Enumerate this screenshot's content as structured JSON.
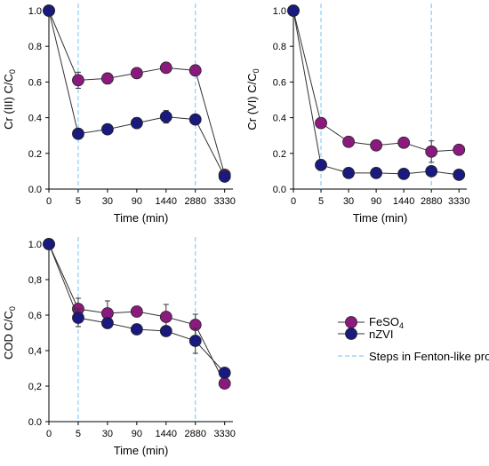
{
  "chart_data": [
    {
      "type": "line",
      "categories": [
        "0",
        "5",
        "30",
        "90",
        "1440",
        "2880",
        "3330"
      ],
      "ylabel": "Cr (III) C/C0",
      "xlabel": "Time (min)",
      "ylim": [
        0,
        1.0
      ],
      "yticks": [
        "0.0",
        "0.2",
        "0.4",
        "0.6",
        "0.8",
        "1.0"
      ],
      "step_markers": [
        "5",
        "2880"
      ],
      "series": [
        {
          "name": "FeSO4",
          "color": "#8b1a7e",
          "values": [
            1.0,
            0.61,
            0.62,
            0.65,
            0.68,
            0.665,
            0.08
          ],
          "errors": [
            0,
            0.045,
            0.03,
            0.015,
            0.02,
            0.015,
            0.015
          ]
        },
        {
          "name": "nZVI",
          "color": "#1a1a7e",
          "values": [
            1.0,
            0.31,
            0.335,
            0.37,
            0.405,
            0.39,
            0.07
          ],
          "errors": [
            0,
            0.015,
            0.015,
            0.03,
            0.035,
            0.015,
            0.015
          ]
        }
      ]
    },
    {
      "type": "line",
      "categories": [
        "0",
        "5",
        "30",
        "90",
        "1440",
        "2880",
        "3330"
      ],
      "ylabel": "Cr (VI) C/C0",
      "xlabel": "Time (min)",
      "ylim": [
        0,
        1.0
      ],
      "yticks": [
        "0.0",
        "0.2",
        "0.4",
        "0.6",
        "0.8",
        "1.0"
      ],
      "step_markers": [
        "5",
        "2880"
      ],
      "series": [
        {
          "name": "FeSO4",
          "color": "#8b1a7e",
          "values": [
            1.0,
            0.37,
            0.265,
            0.245,
            0.26,
            0.21,
            0.22
          ],
          "errors": [
            0,
            0.01,
            0.01,
            0.025,
            0.01,
            0.06,
            0.01
          ]
        },
        {
          "name": "nZVI",
          "color": "#1a1a7e",
          "values": [
            1.0,
            0.135,
            0.09,
            0.09,
            0.085,
            0.1,
            0.08
          ],
          "errors": [
            0,
            0.03,
            0.01,
            0.025,
            0.01,
            0.025,
            0.01
          ]
        }
      ]
    },
    {
      "type": "line",
      "categories": [
        "0",
        "5",
        "30",
        "90",
        "1440",
        "2880",
        "3330"
      ],
      "ylabel": "COD C/C0",
      "xlabel": "Time (min)",
      "ylim": [
        0,
        1.0
      ],
      "yticks": [
        "0.0",
        "0,2",
        "0,4",
        "0,6",
        "0,8",
        "1.0"
      ],
      "step_markers": [
        "5",
        "2880"
      ],
      "series": [
        {
          "name": "FeSO4",
          "color": "#8b1a7e",
          "values": [
            1.0,
            0.635,
            0.61,
            0.62,
            0.59,
            0.545,
            0.215
          ],
          "errors": [
            0,
            0.06,
            0.07,
            0.015,
            0.07,
            0.06,
            0.015
          ]
        },
        {
          "name": "nZVI",
          "color": "#1a1a7e",
          "values": [
            1.0,
            0.585,
            0.555,
            0.52,
            0.51,
            0.455,
            0.275
          ],
          "errors": [
            0,
            0.05,
            0.02,
            0.015,
            0.02,
            0.07,
            0.02
          ]
        }
      ]
    }
  ],
  "legend": {
    "items": [
      {
        "label": "FeSO",
        "sub": "4",
        "color": "#8b1a7e"
      },
      {
        "label": "nZVI",
        "sub": "",
        "color": "#1a1a7e"
      }
    ],
    "steps_label": "Steps in Fenton-like process",
    "steps_color": "#87cefa"
  }
}
